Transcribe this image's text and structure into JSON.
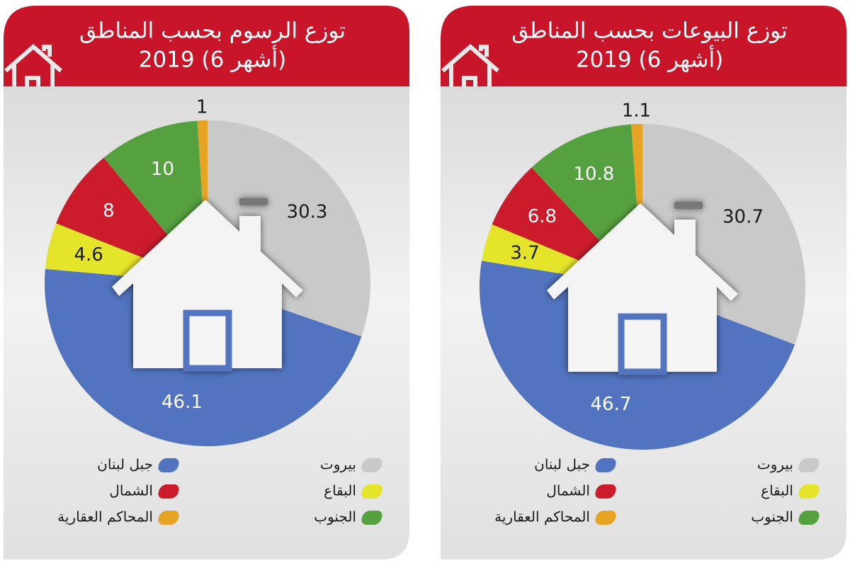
{
  "chart_data": [
    {
      "type": "pie",
      "title": "توزع الرسوم بحسب المناطق",
      "subtitle": "2019 (6 أشهر)",
      "categories": [
        "بيروت",
        "جبل لبنان",
        "البقاع",
        "الشمال",
        "الجنوب",
        "المحاكم العقارية"
      ],
      "values": [
        30.3,
        46.1,
        4.6,
        8,
        10,
        1
      ],
      "colors": [
        "#c9c9c9",
        "#5274c0",
        "#e4e52b",
        "#cc1b2b",
        "#56a13f",
        "#e6a324"
      ]
    },
    {
      "type": "pie",
      "title": "توزع البيوعات بحسب المناطق",
      "subtitle": "2019 (6 أشهر)",
      "categories": [
        "بيروت",
        "جبل لبنان",
        "البقاع",
        "الشمال",
        "الجنوب",
        "المحاكم العقارية"
      ],
      "values": [
        30.7,
        46.7,
        3.7,
        6.8,
        10.8,
        1.1
      ],
      "colors": [
        "#c9c9c9",
        "#5274c0",
        "#e4e52b",
        "#cc1b2b",
        "#56a13f",
        "#e6a324"
      ]
    }
  ]
}
